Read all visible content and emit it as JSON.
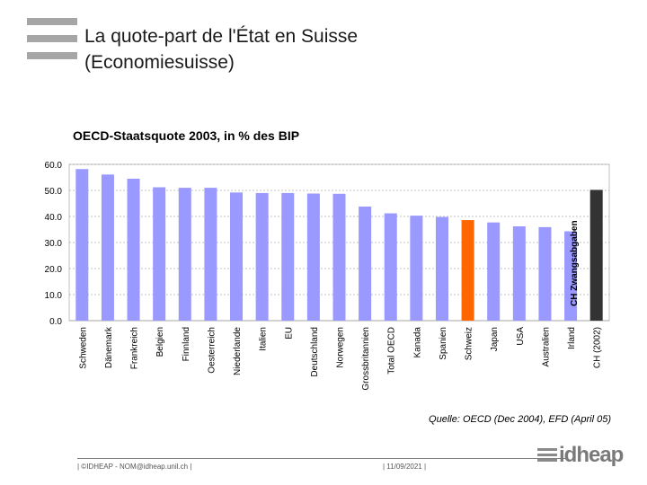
{
  "slide": {
    "title_line1": "La quote-part de l'État en Suisse",
    "title_line2": "(Economiesuisse)"
  },
  "chart_data": {
    "type": "bar",
    "title": "OECD-Staatsquote 2003, in % des BIP",
    "categories": [
      "Schweden",
      "Dänemark",
      "Frankreich",
      "Belgien",
      "Finnland",
      "Oesterreich",
      "Niederlande",
      "Italien",
      "EU",
      "Deutschland",
      "Norwegen",
      "Grossbritannien",
      "Total OECD",
      "Kanada",
      "Spanien",
      "Schweiz",
      "Japan",
      "USA",
      "Australien",
      "Irland",
      "CH (2002)"
    ],
    "values": [
      58.2,
      56.1,
      54.5,
      51.2,
      51.0,
      51.0,
      49.2,
      49.0,
      49.0,
      48.8,
      48.7,
      43.8,
      41.2,
      40.3,
      39.8,
      38.6,
      37.7,
      36.2,
      35.9,
      34.3,
      50.2
    ],
    "highlight": {
      "Schweiz": "#ff6600",
      "CH (2002)": "#333333"
    },
    "bar_color": "#9999ff",
    "yticks": [
      "0.0",
      "10.0",
      "20.0",
      "30.0",
      "40.0",
      "50.0",
      "60.0"
    ],
    "ylim": [
      0,
      60
    ],
    "annotation": "CH Zwangsabgaben",
    "source": "Quelle: OECD (Dec 2004), EFD (April 05)"
  },
  "footer": {
    "left": "| ©IDHEAP - NOM@idheap.unil.ch |",
    "date": "| 11/09/2021 |",
    "brand": "idheap"
  }
}
